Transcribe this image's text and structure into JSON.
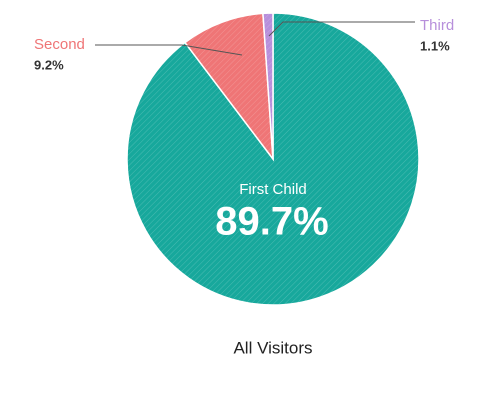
{
  "chart_data": {
    "type": "pie",
    "title": "All Visitors",
    "categories": [
      "First Child",
      "Second",
      "Third"
    ],
    "values": [
      89.7,
      9.2,
      1.1
    ],
    "value_labels": [
      "89.7%",
      "9.2%",
      "1.1%"
    ],
    "colors": [
      "#17a89c",
      "#ef7576",
      "#b78fdb"
    ]
  }
}
